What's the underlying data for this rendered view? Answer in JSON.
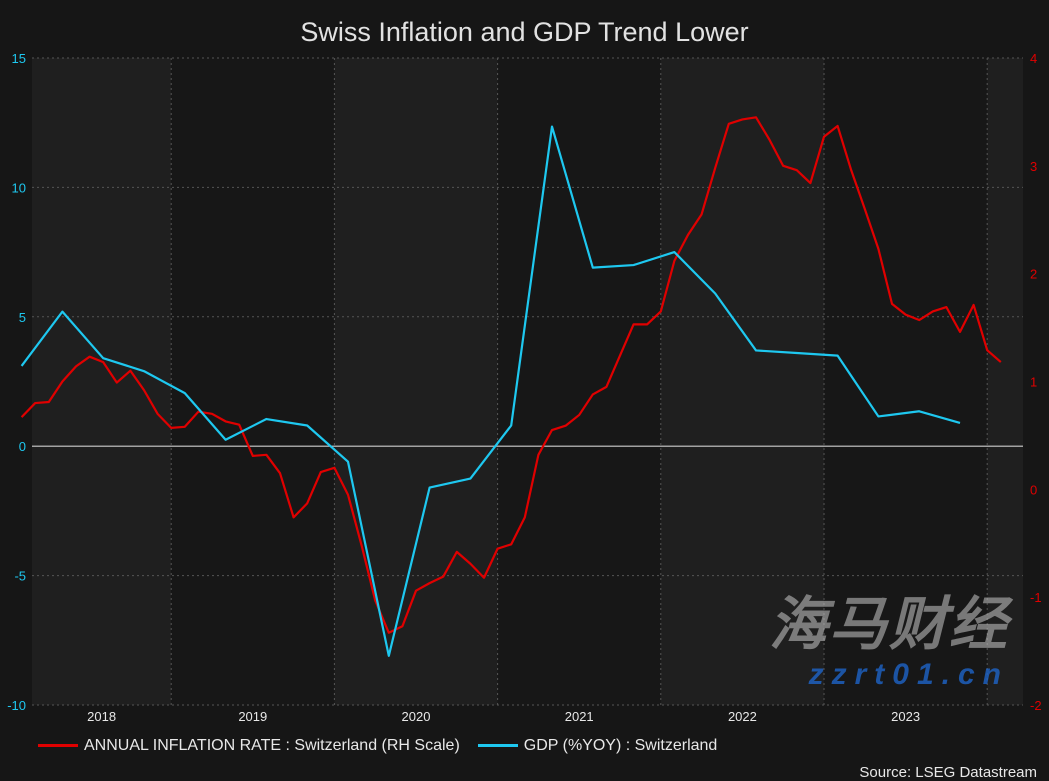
{
  "chart_data": {
    "type": "line",
    "title": "Swiss Inflation and GDP Trend Lower",
    "source": "Source: LSEG Datastream",
    "x_ticks": [
      "2018",
      "2019",
      "2020",
      "2021",
      "2022",
      "2023"
    ],
    "left_axis": {
      "ylim": [
        -10,
        15
      ],
      "ticks": [
        "15",
        "10",
        "5",
        "0",
        "-5",
        "-10"
      ],
      "color": "#1ec8f0"
    },
    "right_axis": {
      "ylim": [
        -2,
        4
      ],
      "ticks": [
        "4",
        "3",
        "2",
        "1",
        "0",
        "-1",
        "-2"
      ],
      "color": "#e00000"
    },
    "grid": true,
    "legend_position": "bottom",
    "series": [
      {
        "name": "ANNUAL INFLATION RATE : Switzerland (RH Scale)",
        "axis": "right",
        "color": "#e00000",
        "start": "2018-02",
        "frequency": "monthly",
        "values": [
          0.67,
          0.8,
          0.81,
          1.0,
          1.14,
          1.23,
          1.18,
          0.99,
          1.1,
          0.92,
          0.7,
          0.57,
          0.58,
          0.72,
          0.7,
          0.63,
          0.6,
          0.31,
          0.32,
          0.15,
          -0.26,
          -0.13,
          0.16,
          0.2,
          -0.05,
          -0.52,
          -1.03,
          -1.33,
          -1.27,
          -0.94,
          -0.87,
          -0.81,
          -0.58,
          -0.69,
          -0.82,
          -0.55,
          -0.51,
          -0.26,
          0.32,
          0.55,
          0.59,
          0.69,
          0.88,
          0.95,
          1.24,
          1.53,
          1.53,
          1.65,
          2.12,
          2.36,
          2.55,
          2.98,
          3.39,
          3.43,
          3.45,
          3.24,
          3.0,
          2.96,
          2.84,
          3.27,
          3.37,
          2.96,
          2.6,
          2.23,
          1.72,
          1.62,
          1.57,
          1.65,
          1.69,
          1.46,
          1.71,
          1.29,
          1.18
        ]
      },
      {
        "name": "GDP (%YOY) : Switzerland",
        "axis": "left",
        "color": "#1ec8f0",
        "start": "2018 Q1",
        "frequency": "quarterly",
        "values": [
          3.1,
          5.2,
          3.4,
          2.9,
          2.05,
          0.25,
          1.05,
          0.8,
          -0.6,
          -8.1,
          -1.6,
          -1.25,
          0.8,
          12.35,
          6.9,
          7.0,
          7.5,
          5.9,
          3.7,
          3.6,
          3.5,
          1.15,
          1.35,
          0.9
        ]
      }
    ]
  },
  "watermark": {
    "text": "海马财经",
    "site": "zzrt01.cn"
  }
}
